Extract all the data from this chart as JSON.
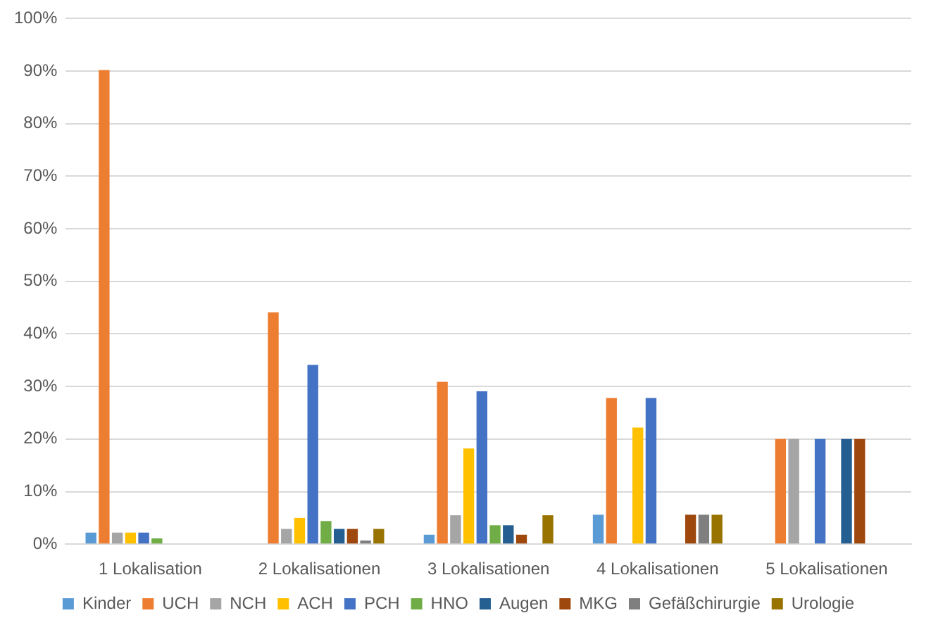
{
  "chart_data": {
    "type": "bar",
    "categories": [
      "1 Lokalisation",
      "2 Lokalisationen",
      "3 Lokalisationen",
      "4 Lokalisationen",
      "5 Lokalisationen"
    ],
    "series": [
      {
        "name": "Kinder",
        "color": "#5b9bd5",
        "values": [
          2.2,
          0,
          1.8,
          5.6,
          0
        ]
      },
      {
        "name": "UCH",
        "color": "#ed7d31",
        "values": [
          90.2,
          44.1,
          30.9,
          27.8,
          20
        ]
      },
      {
        "name": "NCH",
        "color": "#a5a5a5",
        "values": [
          2.2,
          2.9,
          5.5,
          0,
          20
        ]
      },
      {
        "name": "ACH",
        "color": "#ffc000",
        "values": [
          2.2,
          5.0,
          18.2,
          22.2,
          0
        ]
      },
      {
        "name": "PCH",
        "color": "#4472c4",
        "values": [
          2.2,
          34.1,
          29.1,
          27.8,
          20
        ]
      },
      {
        "name": "HNO",
        "color": "#70ad47",
        "values": [
          1.1,
          4.4,
          3.6,
          0,
          0
        ]
      },
      {
        "name": "Augen",
        "color": "#255e91",
        "values": [
          0,
          2.9,
          3.6,
          0,
          20
        ]
      },
      {
        "name": "MKG",
        "color": "#9e480e",
        "values": [
          0,
          2.9,
          1.8,
          5.6,
          20
        ]
      },
      {
        "name": "Gefäßchirurgie",
        "color": "#7f7f7f",
        "values": [
          0,
          0.7,
          0,
          5.6,
          0
        ]
      },
      {
        "name": "Urologie",
        "color": "#997300",
        "values": [
          0,
          2.9,
          5.5,
          5.6,
          0
        ]
      }
    ],
    "ylim": [
      0,
      100
    ],
    "yticks": [
      {
        "value": 0,
        "label": "0%"
      },
      {
        "value": 10,
        "label": "10%"
      },
      {
        "value": 20,
        "label": "20%"
      },
      {
        "value": 30,
        "label": "30%"
      },
      {
        "value": 40,
        "label": "40%"
      },
      {
        "value": 50,
        "label": "50%"
      },
      {
        "value": 60,
        "label": "60%"
      },
      {
        "value": 70,
        "label": "70%"
      },
      {
        "value": 80,
        "label": "80%"
      },
      {
        "value": 90,
        "label": "90%"
      },
      {
        "value": 100,
        "label": "100%"
      }
    ],
    "grid": "y",
    "legend": "bottom"
  }
}
